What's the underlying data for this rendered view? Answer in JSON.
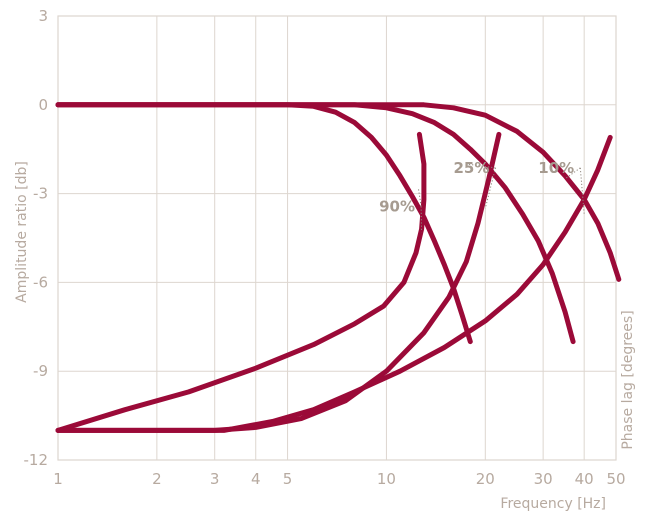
{
  "chart_data": {
    "type": "line",
    "xscale": "log",
    "xlim": [
      1,
      50
    ],
    "ylim": [
      -12,
      3
    ],
    "grid": true,
    "xlabel": "Frequency [Hz]",
    "ylabel": "Amplitude ratio [db]",
    "y2label": "Phase lag [degrees]",
    "xticks": [
      1,
      2,
      3,
      4,
      5,
      10,
      20,
      30,
      40,
      50
    ],
    "xtick_labels": [
      "1",
      "2",
      "3",
      "4",
      "5",
      "10",
      "20",
      "30",
      "40",
      "50"
    ],
    "yticks": [
      3,
      0,
      -3,
      -6,
      -9,
      -12
    ],
    "ytick_labels": [
      "3",
      "0",
      "-3",
      "-6",
      "-9",
      "-12"
    ],
    "color": "#9b0a38",
    "series": [
      {
        "kind": "amplitude",
        "points": [
          [
            1,
            0
          ],
          [
            5,
            0
          ],
          [
            6,
            -0.05
          ],
          [
            7,
            -0.25
          ],
          [
            8,
            -0.6
          ],
          [
            9,
            -1.1
          ],
          [
            10,
            -1.7
          ],
          [
            11,
            -2.4
          ],
          [
            12,
            -3.1
          ],
          [
            13,
            -3.8
          ],
          [
            14,
            -4.6
          ],
          [
            15,
            -5.4
          ],
          [
            16,
            -6.2
          ],
          [
            17,
            -7.1
          ],
          [
            18,
            -8.0
          ]
        ]
      },
      {
        "kind": "amplitude",
        "points": [
          [
            1,
            0
          ],
          [
            8,
            0
          ],
          [
            10,
            -0.1
          ],
          [
            12,
            -0.3
          ],
          [
            14,
            -0.6
          ],
          [
            16,
            -1.0
          ],
          [
            18,
            -1.5
          ],
          [
            20,
            -2.0
          ],
          [
            23,
            -2.8
          ],
          [
            26,
            -3.7
          ],
          [
            29,
            -4.6
          ],
          [
            32,
            -5.7
          ],
          [
            35,
            -7.0
          ],
          [
            37,
            -8.0
          ]
        ]
      },
      {
        "kind": "amplitude",
        "points": [
          [
            1,
            0
          ],
          [
            13,
            0
          ],
          [
            16,
            -0.1
          ],
          [
            20,
            -0.35
          ],
          [
            25,
            -0.9
          ],
          [
            30,
            -1.6
          ],
          [
            35,
            -2.4
          ],
          [
            40,
            -3.2
          ],
          [
            44,
            -4.0
          ],
          [
            48,
            -5.0
          ],
          [
            51,
            -5.9
          ]
        ]
      },
      {
        "kind": "phase",
        "points": [
          [
            12.6,
            -1.0
          ],
          [
            13,
            -2.0
          ],
          [
            13,
            -3.2
          ],
          [
            12.8,
            -4.2
          ],
          [
            12.3,
            -5.0
          ],
          [
            11.3,
            -6.0
          ],
          [
            9.8,
            -6.8
          ],
          [
            8,
            -7.4
          ],
          [
            6,
            -8.1
          ],
          [
            4,
            -8.9
          ],
          [
            2.5,
            -9.7
          ],
          [
            1.6,
            -10.3
          ],
          [
            1,
            -11.0
          ]
        ]
      },
      {
        "kind": "phase",
        "points": [
          [
            22,
            -1.0
          ],
          [
            20.5,
            -2.5
          ],
          [
            19,
            -4.0
          ],
          [
            17.5,
            -5.3
          ],
          [
            15.5,
            -6.5
          ],
          [
            13,
            -7.7
          ],
          [
            10,
            -9.0
          ],
          [
            7.5,
            -10.0
          ],
          [
            5.5,
            -10.6
          ],
          [
            4,
            -10.9
          ],
          [
            3,
            -11.0
          ],
          [
            1,
            -11.0
          ]
        ]
      },
      {
        "kind": "phase",
        "points": [
          [
            48,
            -1.1
          ],
          [
            44,
            -2.2
          ],
          [
            40,
            -3.2
          ],
          [
            35,
            -4.3
          ],
          [
            30,
            -5.4
          ],
          [
            25,
            -6.4
          ],
          [
            20,
            -7.3
          ],
          [
            15,
            -8.2
          ],
          [
            11,
            -9.0
          ],
          [
            8,
            -9.7
          ],
          [
            6,
            -10.3
          ],
          [
            4.5,
            -10.7
          ],
          [
            3.2,
            -11.0
          ],
          [
            1,
            -11.0
          ]
        ]
      }
    ],
    "annotations": [
      {
        "text": "90%",
        "label_at": [
          9.5,
          -3.6
        ],
        "leaders": [
          [
            12.5,
            -2.8
          ],
          [
            12.8,
            -4.3
          ]
        ]
      },
      {
        "text": "25%",
        "label_at": [
          16,
          -2.3
        ],
        "leaders": [
          [
            17.5,
            -2.0
          ],
          [
            20,
            -3.5
          ]
        ]
      },
      {
        "text": "10%",
        "label_at": [
          29,
          -2.3
        ],
        "leaders": [
          [
            35,
            -2.5
          ],
          [
            40,
            -3.7
          ]
        ]
      }
    ]
  }
}
